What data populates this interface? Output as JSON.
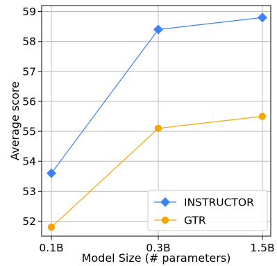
{
  "chart_data": {
    "type": "line",
    "categories": [
      "0.1B",
      "0.3B",
      "1.5B"
    ],
    "series": [
      {
        "name": "INSTRUCTOR",
        "values": [
          53.6,
          58.4,
          58.8
        ],
        "color": "#3b82f6",
        "marker": "diamond"
      },
      {
        "name": "GTR",
        "values": [
          51.8,
          55.1,
          55.5
        ],
        "color": "#f5a500",
        "marker": "circle"
      }
    ],
    "xlabel": "Model Size (# parameters)",
    "ylabel": "Average score",
    "ylim": [
      51.5,
      59.2
    ],
    "yticks": [
      "52",
      "53",
      "54",
      "55",
      "56",
      "57",
      "58",
      "59"
    ],
    "grid": true,
    "legend_position": "bottom-right"
  }
}
